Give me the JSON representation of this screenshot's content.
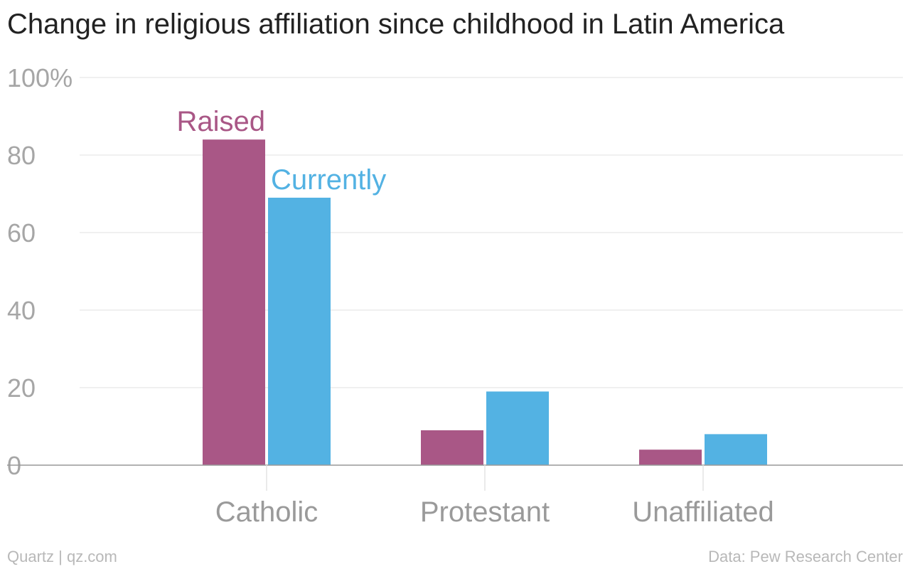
{
  "chart_data": {
    "type": "bar",
    "title": "Change in religious affiliation since childhood in Latin America",
    "categories": [
      "Catholic",
      "Protestant",
      "Unaffiliated"
    ],
    "series": [
      {
        "name": "Raised",
        "color": "#a95786",
        "values": [
          84,
          9,
          4
        ]
      },
      {
        "name": "Currently",
        "color": "#53b2e3",
        "values": [
          69,
          19,
          8
        ]
      }
    ],
    "ylim": [
      0,
      100
    ],
    "yticks": [
      0,
      20,
      40,
      60,
      80,
      100
    ],
    "ytick_labels": [
      "0",
      "20",
      "40",
      "60",
      "80",
      "100%"
    ],
    "grid": true,
    "legend": "direct labels above Catholic bars"
  },
  "footer": {
    "source_left": "Quartz | qz.com",
    "source_right": "Data: Pew Research Center"
  },
  "colors": {
    "raised": "#a95786",
    "currently": "#53b2e3",
    "grid": "#ececec",
    "axis": "#999999"
  }
}
